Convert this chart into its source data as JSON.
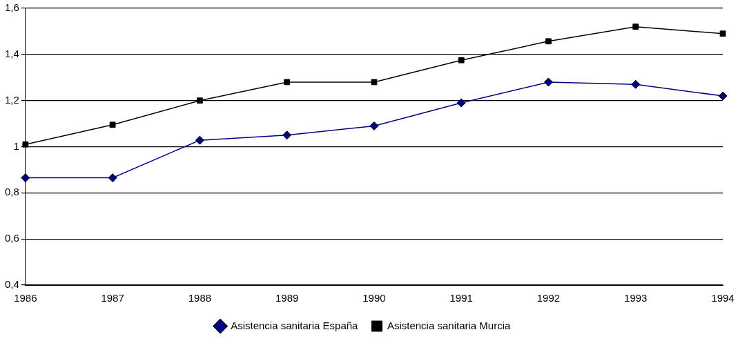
{
  "chart_data": {
    "type": "line",
    "categories": [
      "1986",
      "1987",
      "1988",
      "1989",
      "1990",
      "1991",
      "1992",
      "1993",
      "1994"
    ],
    "series": [
      {
        "name": "Asistencia sanitaria España",
        "color": "#000080",
        "marker": "diamond",
        "values": [
          0.865,
          0.865,
          1.028,
          1.05,
          1.09,
          1.19,
          1.28,
          1.27,
          1.22
        ]
      },
      {
        "name": "Asistencia sanitaria Murcia",
        "color": "#000000",
        "marker": "square",
        "values": [
          1.01,
          1.095,
          1.2,
          1.28,
          1.28,
          1.375,
          1.457,
          1.52,
          1.49
        ]
      }
    ],
    "ylim": [
      0.4,
      1.6
    ],
    "yticks": [
      {
        "value": 0.4,
        "label": "0,4"
      },
      {
        "value": 0.6,
        "label": "0,6"
      },
      {
        "value": 0.8,
        "label": "0,8"
      },
      1,
      {
        "value": 1.2,
        "label": "1,2"
      },
      {
        "value": 1.4,
        "label": "1,4"
      },
      {
        "value": 1.6,
        "label": "1,6"
      }
    ],
    "grid": "y",
    "legend": "bottom",
    "line_style": "solid"
  }
}
